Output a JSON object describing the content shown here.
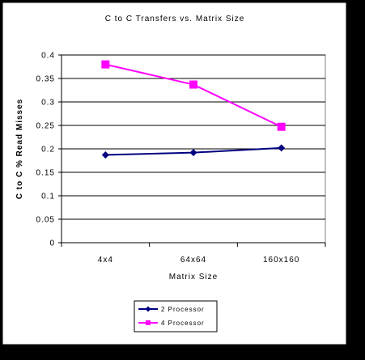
{
  "chart_data": {
    "type": "line",
    "title": "C to C Transfers vs. Matrix Size",
    "xlabel": "Matrix Size",
    "ylabel": "C to C % Read Misses",
    "categories": [
      "4x4",
      "64x64",
      "160x160"
    ],
    "ylim": [
      0,
      0.4
    ],
    "yticks": [
      "0",
      "0.05",
      "0.1",
      "0.15",
      "0.2",
      "0.25",
      "0.3",
      "0.35",
      "0.4"
    ],
    "grid": true,
    "legend_position": "bottom-left",
    "series": [
      {
        "name": "2 Processor",
        "values": [
          0.187,
          0.192,
          0.202
        ],
        "color": "#000080",
        "marker": "diamond"
      },
      {
        "name": "4 Processor",
        "values": [
          0.38,
          0.337,
          0.247
        ],
        "color": "#FF00FF",
        "marker": "square"
      }
    ]
  },
  "colors": {
    "background": "#000000",
    "chart_area": "#FFFFFF",
    "plot_area": "#FFFFFF",
    "gridline": "#000000"
  }
}
